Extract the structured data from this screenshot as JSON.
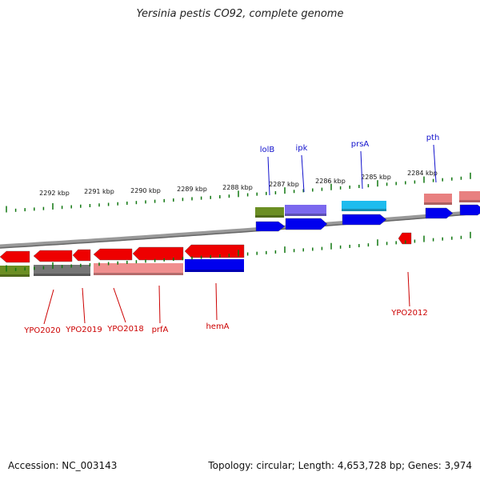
{
  "title": "Yersinia pestis CO92, complete genome",
  "footer": {
    "accession": "Accession: NC_003143",
    "topology": "Topology: circular; Length: 4,653,728 bp; Genes: 3,974"
  },
  "colors": {
    "forward_cds": "#0000ee",
    "reverse_cds": "#ee0000",
    "label_blue": "#1111cc",
    "label_red": "#cc0000",
    "tick_green": "#117711",
    "backbone": "#777777"
  },
  "scale_labels": [
    {
      "kbp": 2292,
      "text": "2292 kbp"
    },
    {
      "kbp": 2291,
      "text": "2291 kbp"
    },
    {
      "kbp": 2290,
      "text": "2290 kbp"
    },
    {
      "kbp": 2289,
      "text": "2289 kbp"
    },
    {
      "kbp": 2288,
      "text": "2288 kbp"
    },
    {
      "kbp": 2287,
      "text": "2287 kbp"
    },
    {
      "kbp": 2286,
      "text": "2286 kbp"
    },
    {
      "kbp": 2285,
      "text": "2285 kbp"
    },
    {
      "kbp": 2284,
      "text": "2284 kbp"
    }
  ],
  "genes_forward": [
    {
      "name": "lolB"
    },
    {
      "name": "ipk"
    },
    {
      "name": "prsA"
    },
    {
      "name": "pth"
    }
  ],
  "genes_reverse": [
    {
      "name": "YPO2020"
    },
    {
      "name": "YPO2019"
    },
    {
      "name": "YPO2018"
    },
    {
      "name": "prfA"
    },
    {
      "name": "hemA"
    },
    {
      "name": "YPO2012"
    }
  ]
}
